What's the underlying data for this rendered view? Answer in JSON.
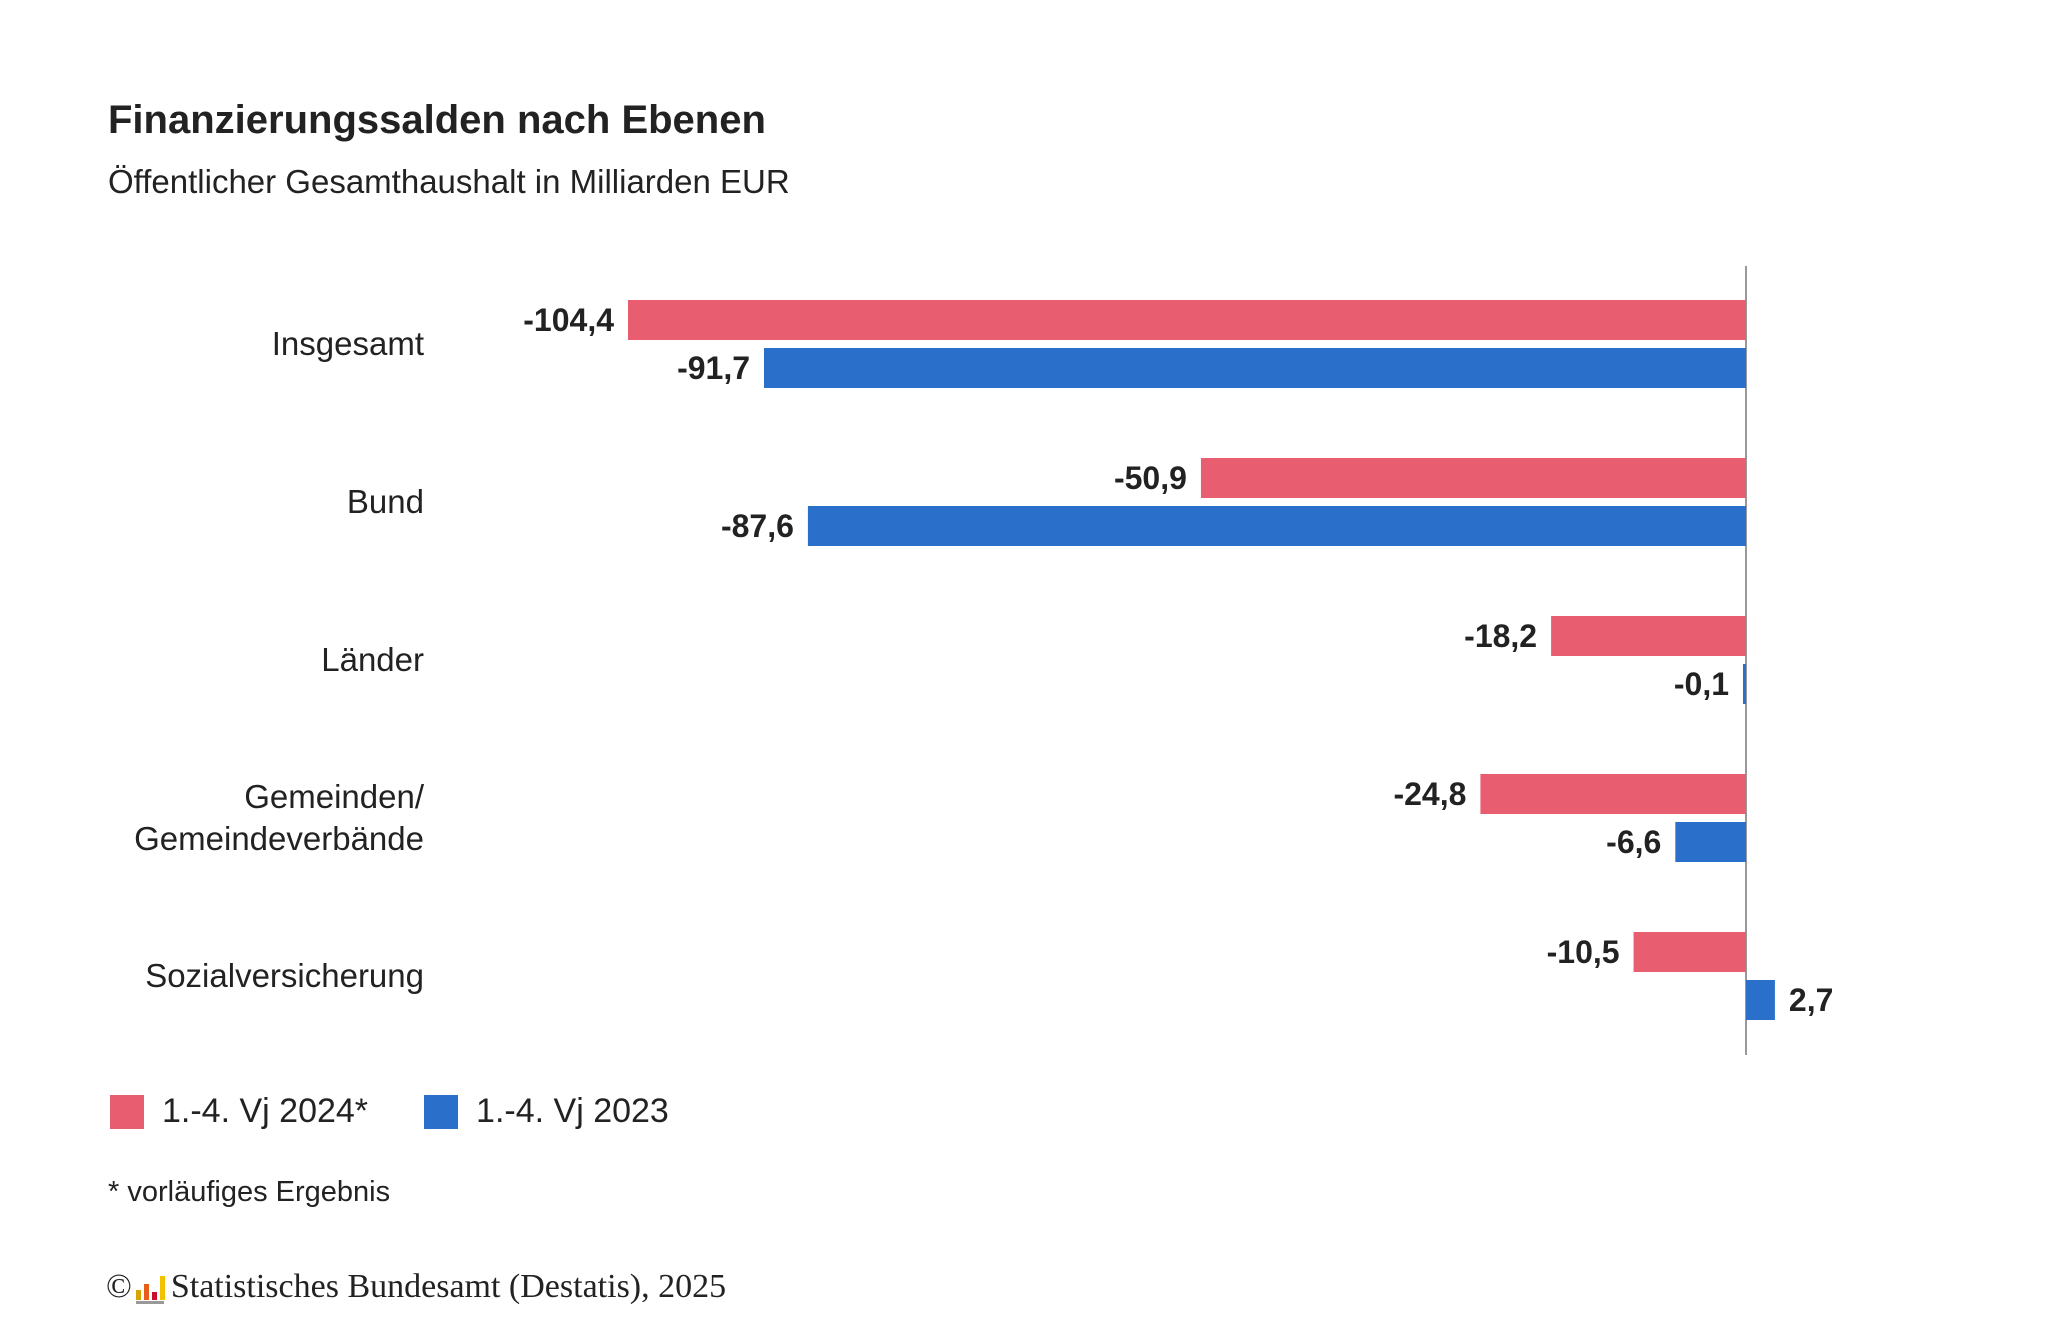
{
  "chart_data": {
    "type": "bar",
    "orientation": "horizontal",
    "title": "Finanzierungssalden nach Ebenen",
    "subtitle": "Öffentlicher Gesamthaushalt in Milliarden EUR",
    "categories": [
      "Insgesamt",
      "Bund",
      "Länder",
      "Gemeinden/\nGemeindeverbände",
      "Sozialversicherung"
    ],
    "series": [
      {
        "name": "1.-4. Vj 2024*",
        "color": "#e85d70",
        "values": [
          -104.4,
          -50.9,
          -18.2,
          -24.8,
          -10.5
        ],
        "labels": [
          "-104,4",
          "-50,9",
          "-18,2",
          "-24,8",
          "-10,5"
        ]
      },
      {
        "name": "1.-4. Vj 2023",
        "color": "#2a6fc9",
        "values": [
          -91.7,
          -87.6,
          -0.1,
          -6.6,
          2.7
        ],
        "labels": [
          "-91,7",
          "-87,6",
          "-0,1",
          "-6,6",
          "2,7"
        ]
      }
    ],
    "legend_position": "bottom-left",
    "grid": false
  },
  "footnote": "* vorläufiges Ergebnis",
  "copyright": {
    "symbol": "©",
    "text": "Statistisches Bundesamt (Destatis), 2025",
    "logo_colors": [
      "#d9a400",
      "#e85d1a",
      "#c8102e",
      "#f2c200"
    ]
  }
}
